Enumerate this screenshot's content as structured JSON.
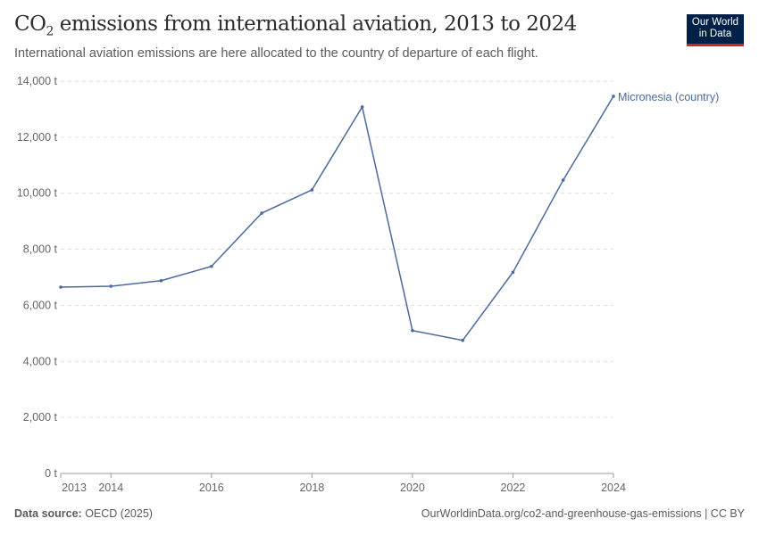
{
  "header": {
    "title_main": "CO",
    "title_sub": "2",
    "title_rest": " emissions from international aviation, 2013 to 2024",
    "subtitle": "International aviation emissions are here allocated to the country of departure of each flight.",
    "logo": [
      "Our World",
      "in Data"
    ]
  },
  "footer": {
    "source_label": "Data source:",
    "source": " OECD (2025)",
    "link": "OurWorldinData.org/co2-and-greenhouse-gas-emissions | CC BY"
  },
  "colors": {
    "series": "#4c6a9c",
    "logo_bg": "#002147",
    "logo_accent": "#ce261e"
  },
  "chart_data": {
    "type": "line",
    "title": "CO₂ emissions from international aviation, 2013 to 2024",
    "x": [
      2013,
      2014,
      2015,
      2016,
      2017,
      2018,
      2019,
      2020,
      2021,
      2022,
      2023,
      2024
    ],
    "x_ticks": [
      "2013",
      "2014",
      "2016",
      "2018",
      "2020",
      "2022",
      "2024"
    ],
    "y_ticks": [
      "0 t",
      "2,000 t",
      "4,000 t",
      "6,000 t",
      "8,000 t",
      "10,000 t",
      "12,000 t",
      "14,000 t"
    ],
    "ylim": [
      0,
      14000
    ],
    "grid": true,
    "series": [
      {
        "name": "Micronesia (country)",
        "values": [
          6650,
          6680,
          6880,
          7390,
          9290,
          10120,
          13080,
          5100,
          4750,
          7180,
          10470,
          13460
        ]
      }
    ]
  }
}
